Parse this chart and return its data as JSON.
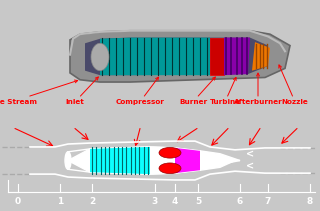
{
  "bg_top": "#c8c8c8",
  "bg_bot": "#000000",
  "fig_bg": "#c8c8c8",
  "labels": [
    "Free Stream",
    "Inlet",
    "Compressor",
    "Burner",
    "Turbine",
    "Afterburner",
    "Nozzle"
  ],
  "label_colors": [
    "red",
    "red",
    "red",
    "red",
    "red",
    "red",
    "red"
  ],
  "station_labels": [
    "0",
    "1",
    "2",
    "3",
    "4",
    "5",
    "6",
    "7",
    "8"
  ],
  "compressor_color": "#00ffff",
  "burner_color": "#ff0000",
  "turbine_color": "#ff00ff",
  "engine_gray": "#888888",
  "engine_dark": "#555566",
  "engine_teal": "#009999",
  "engine_purple": "#880099",
  "engine_orange": "#ee7700",
  "engine_red": "#cc0000"
}
